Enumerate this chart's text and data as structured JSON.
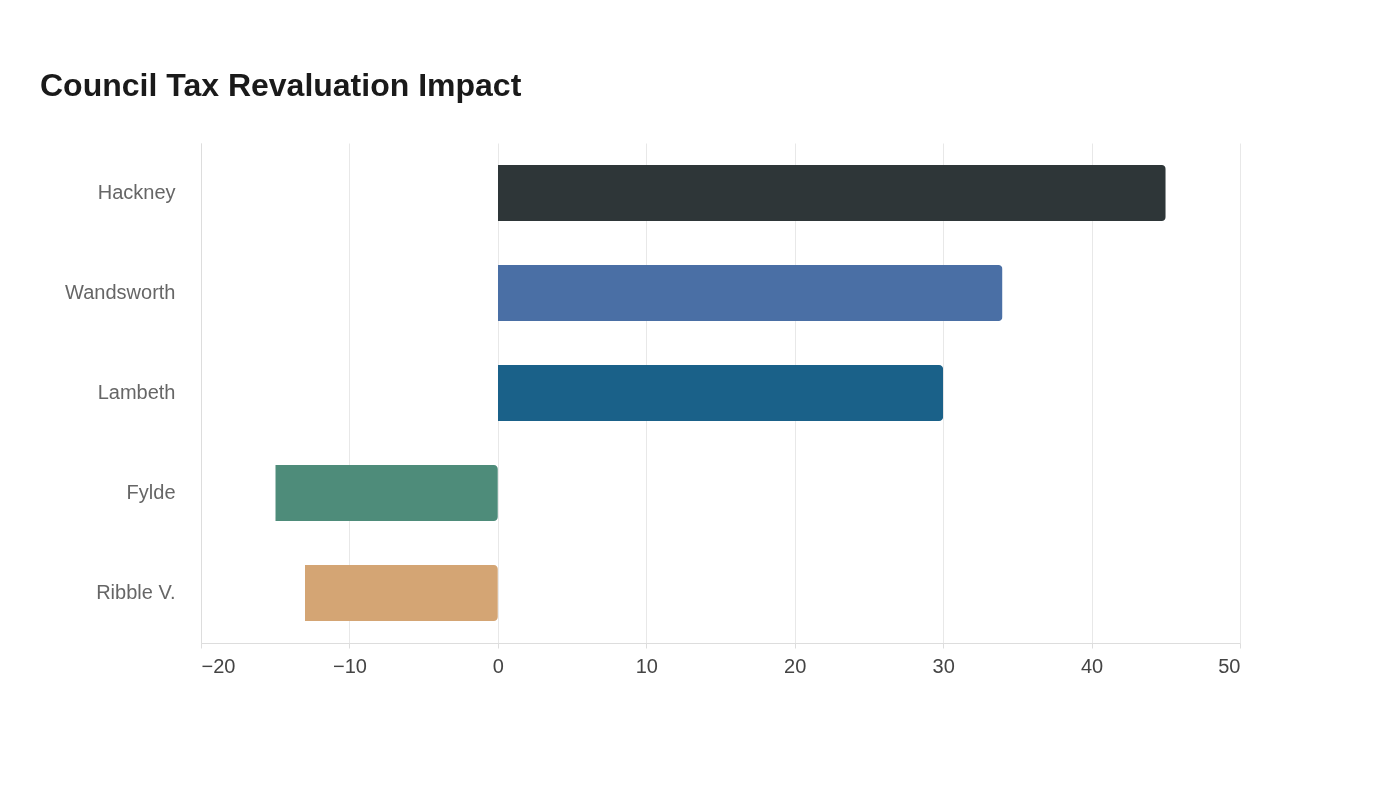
{
  "chart_data": {
    "type": "bar",
    "title": "Council Tax Revaluation Impact",
    "orientation": "horizontal",
    "categories": [
      "Hackney",
      "Wandsworth",
      "Lambeth",
      "Fylde",
      "Ribble V."
    ],
    "values": [
      45,
      34,
      30,
      -15,
      -13
    ],
    "colors": [
      "#2e3638",
      "#4a6fa5",
      "#1a6189",
      "#4e8c7a",
      "#d4a574"
    ],
    "xlim": [
      -20,
      50
    ],
    "xticks": [
      -20,
      -10,
      0,
      10,
      20,
      30,
      40,
      50
    ],
    "grid": "x"
  }
}
